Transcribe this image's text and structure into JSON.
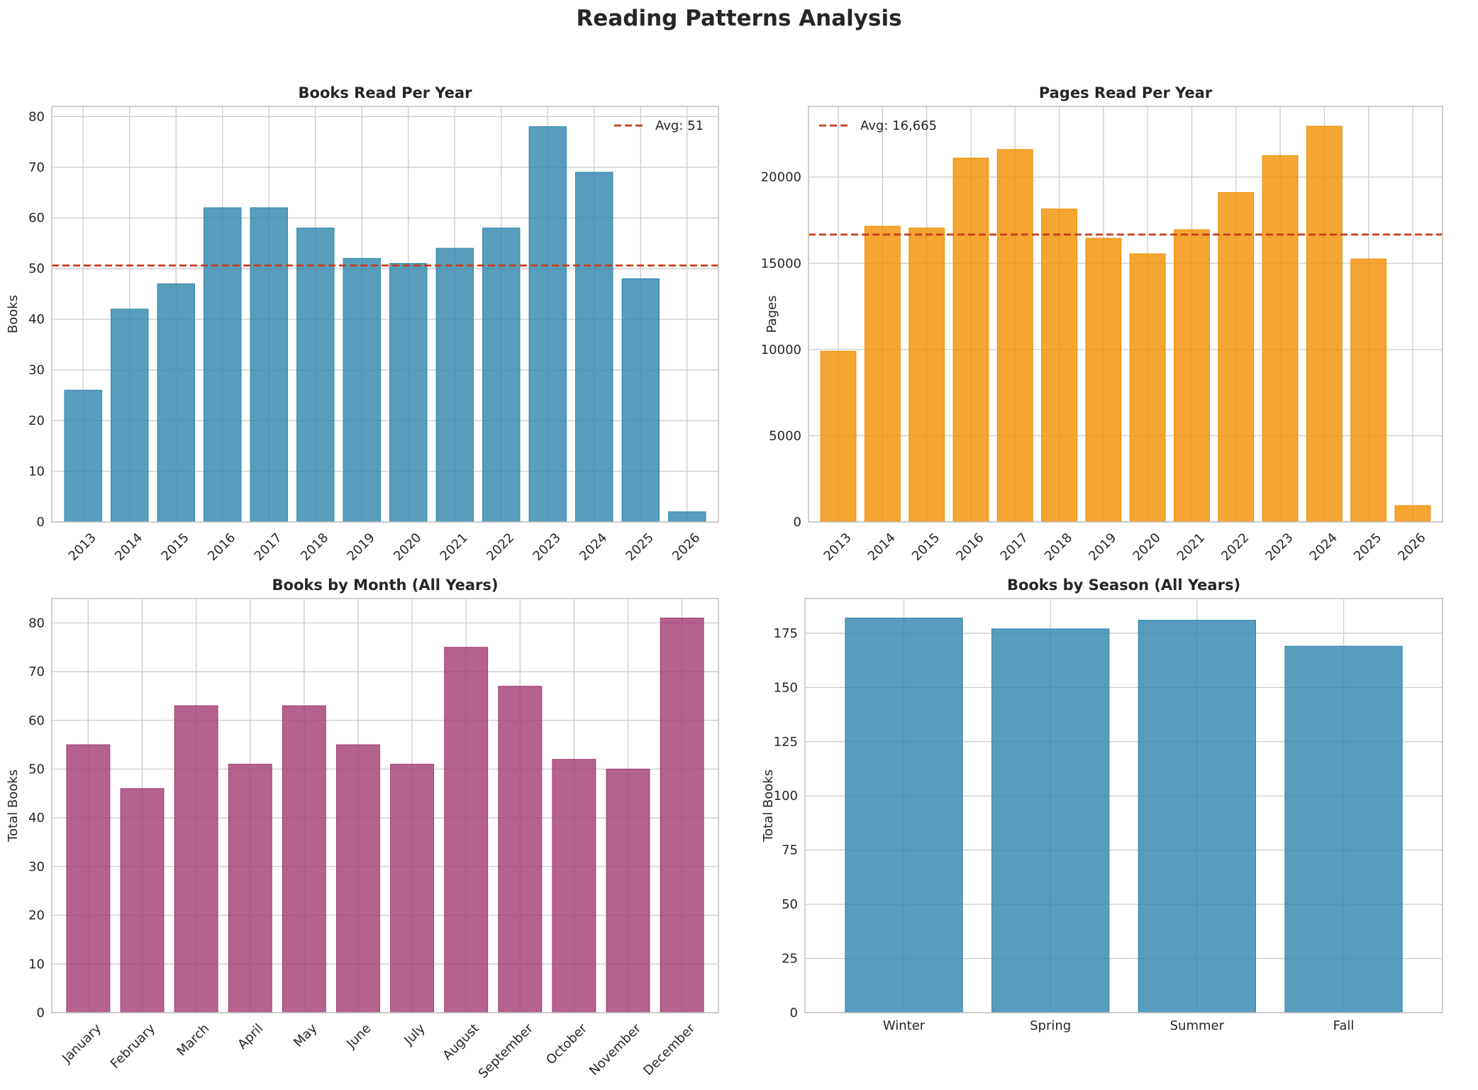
{
  "figure_title": "Reading Patterns Analysis",
  "colors": {
    "blue": "#2E86AB",
    "orange": "#F18F01",
    "purple": "#A23B72",
    "avg_line": "#C73E1D",
    "grid": "#cccccc",
    "frame": "#bfbfbf"
  },
  "chart_data": [
    {
      "type": "bar",
      "title": "Books Read Per Year",
      "xlabel": "",
      "ylabel": "Books",
      "categories": [
        "2013",
        "2014",
        "2015",
        "2016",
        "2017",
        "2018",
        "2019",
        "2020",
        "2021",
        "2022",
        "2023",
        "2024",
        "2025",
        "2026"
      ],
      "values": [
        26,
        42,
        47,
        62,
        62,
        58,
        52,
        51,
        54,
        58,
        78,
        69,
        48,
        2
      ],
      "ylim": [
        0,
        82
      ],
      "yticks": [
        0,
        10,
        20,
        30,
        40,
        50,
        60,
        70,
        80
      ],
      "ytick_labels": [
        "0",
        "10",
        "20",
        "30",
        "40",
        "50",
        "60",
        "70",
        "80"
      ],
      "bar_color": "#2E86AB",
      "rotate_xticks": true,
      "avg_line": {
        "value": 50.6,
        "label": "Avg: 51",
        "color": "#C73E1D"
      },
      "legend_position": "top-right",
      "grid": true
    },
    {
      "type": "bar",
      "title": "Pages Read Per Year",
      "xlabel": "",
      "ylabel": "Pages",
      "categories": [
        "2013",
        "2014",
        "2015",
        "2016",
        "2017",
        "2018",
        "2019",
        "2020",
        "2021",
        "2022",
        "2023",
        "2024",
        "2025",
        "2026"
      ],
      "values": [
        9900,
        17150,
        17050,
        21100,
        21600,
        18150,
        16450,
        15550,
        16950,
        19100,
        21250,
        22950,
        15250,
        950
      ],
      "ylim": [
        0,
        24100
      ],
      "yticks": [
        0,
        5000,
        10000,
        15000,
        20000
      ],
      "ytick_labels": [
        "0",
        "5000",
        "10000",
        "15000",
        "20000"
      ],
      "bar_color": "#F18F01",
      "rotate_xticks": true,
      "avg_line": {
        "value": 16665,
        "label": "Avg: 16,665",
        "color": "#C73E1D"
      },
      "legend_position": "top-left",
      "grid": true
    },
    {
      "type": "bar",
      "title": "Books by Month (All Years)",
      "xlabel": "",
      "ylabel": "Total Books",
      "categories": [
        "January",
        "February",
        "March",
        "April",
        "May",
        "June",
        "July",
        "August",
        "September",
        "October",
        "November",
        "December"
      ],
      "values": [
        55,
        46,
        63,
        51,
        63,
        55,
        51,
        75,
        67,
        52,
        50,
        81
      ],
      "ylim": [
        0,
        85
      ],
      "yticks": [
        0,
        10,
        20,
        30,
        40,
        50,
        60,
        70,
        80
      ],
      "ytick_labels": [
        "0",
        "10",
        "20",
        "30",
        "40",
        "50",
        "60",
        "70",
        "80"
      ],
      "bar_color": "#A23B72",
      "rotate_xticks": true,
      "grid": true
    },
    {
      "type": "bar",
      "title": "Books by Season (All Years)",
      "xlabel": "",
      "ylabel": "Total Books",
      "categories": [
        "Winter",
        "Spring",
        "Summer",
        "Fall"
      ],
      "values": [
        182,
        177,
        181,
        169
      ],
      "ylim": [
        0,
        191
      ],
      "yticks": [
        0,
        25,
        50,
        75,
        100,
        125,
        150,
        175
      ],
      "ytick_labels": [
        "0",
        "25",
        "50",
        "75",
        "100",
        "125",
        "150",
        "175"
      ],
      "bar_color": "#2E86AB",
      "rotate_xticks": false,
      "grid": true
    }
  ]
}
